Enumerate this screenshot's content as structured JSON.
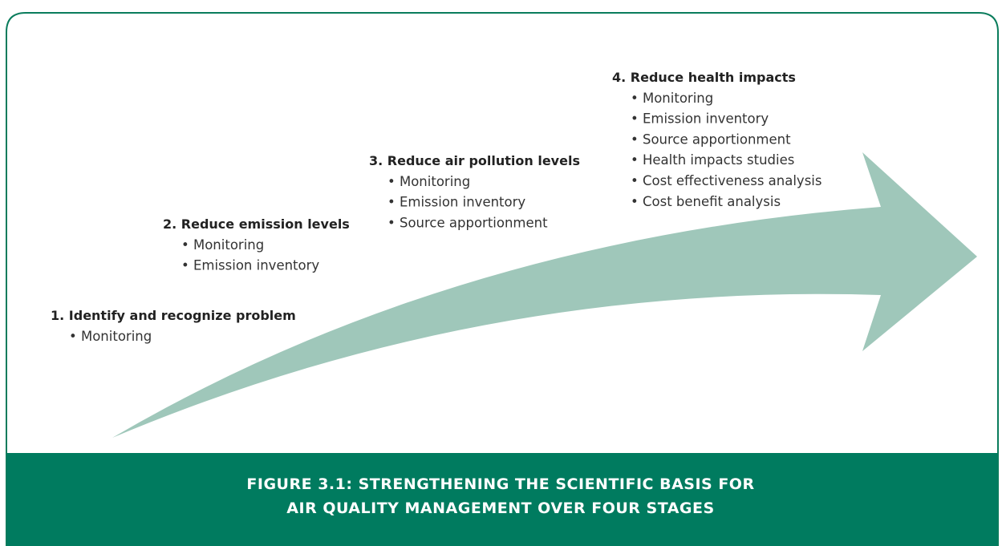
{
  "stages": [
    {
      "title": "1. Identify and recognize problem",
      "items": [
        "• Monitoring"
      ]
    },
    {
      "title": "2. Reduce emission levels",
      "items": [
        "• Monitoring",
        "• Emission inventory"
      ]
    },
    {
      "title": "3. Reduce air pollution levels",
      "items": [
        "• Monitoring",
        "• Emission inventory",
        "• Source apportionment"
      ]
    },
    {
      "title": "4. Reduce health impacts",
      "items": [
        "• Monitoring",
        "• Emission inventory",
        "• Source apportionment",
        "• Health impacts studies",
        "• Cost effectiveness analysis",
        "• Cost benefit analysis"
      ]
    }
  ],
  "caption": {
    "lines": [
      "FIGURE 3.1: STRENGTHENING THE SCIENTIFIC BASIS FOR",
      "AIR QUALITY MANAGEMENT OVER FOUR STAGES"
    ]
  }
}
